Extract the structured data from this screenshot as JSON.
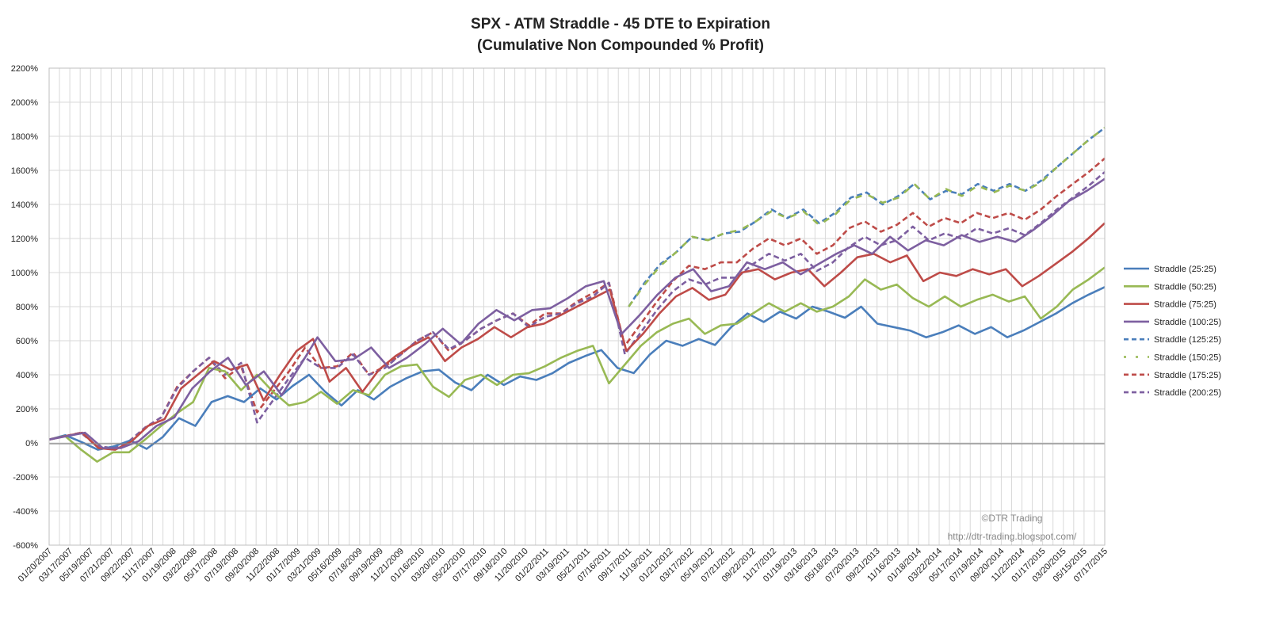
{
  "chart_data": {
    "type": "line",
    "title": "SPX - ATM Straddle - 45 DTE to Expiration",
    "subtitle": "(Cumulative Non Compounded % Profit)",
    "xlabel": "",
    "ylabel": "",
    "ylim": [
      -600,
      2200
    ],
    "y_tick_labels": [
      "-600%",
      "-400%",
      "-200%",
      "0%",
      "200%",
      "400%",
      "600%",
      "800%",
      "1000%",
      "1200%",
      "1400%",
      "1600%",
      "1800%",
      "2000%",
      "2200%"
    ],
    "x_tick_labels": [
      "01/20/2007",
      "03/17/2007",
      "05/19/2007",
      "07/21/2007",
      "09/22/2007",
      "11/17/2007",
      "01/19/2008",
      "03/22/2008",
      "05/17/2008",
      "07/19/2008",
      "09/20/2008",
      "11/22/2008",
      "01/17/2009",
      "03/21/2009",
      "05/16/2009",
      "07/18/2009",
      "09/19/2009",
      "11/21/2009",
      "01/16/2010",
      "03/20/2010",
      "05/22/2010",
      "07/17/2010",
      "09/18/2010",
      "11/20/2010",
      "01/22/2011",
      "03/19/2011",
      "05/21/2011",
      "07/16/2011",
      "09/17/2011",
      "11/19/2011",
      "01/21/2012",
      "03/17/2012",
      "05/19/2012",
      "07/21/2012",
      "09/22/2012",
      "11/17/2012",
      "01/19/2013",
      "03/16/2013",
      "05/18/2013",
      "07/20/2013",
      "09/21/2013",
      "11/16/2013",
      "01/18/2014",
      "03/22/2014",
      "05/17/2014",
      "07/19/2014",
      "09/20/2014",
      "11/22/2014",
      "01/17/2015",
      "03/20/2015",
      "05/15/2015",
      "07/17/2015"
    ],
    "grid": true,
    "legend_position": "right",
    "series": [
      {
        "name": "Straddle (25:25)",
        "color": "#4a7ebb",
        "dash": "solid",
        "values": [
          20,
          45,
          5,
          -40,
          -20,
          15,
          -35,
          35,
          145,
          100,
          240,
          275,
          240,
          320,
          255,
          335,
          400,
          300,
          220,
          310,
          255,
          330,
          380,
          420,
          430,
          355,
          310,
          400,
          340,
          390,
          370,
          410,
          470,
          510,
          545,
          440,
          410,
          520,
          600,
          570,
          610,
          575,
          680,
          760,
          710,
          770,
          730,
          800,
          770,
          735,
          800,
          700,
          680,
          660,
          620,
          650,
          690,
          640,
          680,
          620,
          660,
          710,
          760,
          820,
          870,
          915
        ]
      },
      {
        "name": "Straddle (50:25)",
        "color": "#98b954",
        "dash": "solid",
        "values": [
          20,
          40,
          -40,
          -110,
          -55,
          -55,
          20,
          100,
          175,
          240,
          440,
          420,
          310,
          400,
          300,
          220,
          240,
          300,
          230,
          310,
          280,
          400,
          450,
          460,
          330,
          270,
          370,
          400,
          340,
          400,
          410,
          450,
          500,
          540,
          570,
          350,
          460,
          570,
          650,
          700,
          730,
          640,
          690,
          700,
          760,
          820,
          770,
          820,
          770,
          800,
          860,
          960,
          900,
          930,
          850,
          800,
          860,
          800,
          840,
          870,
          830,
          860,
          730,
          800,
          900,
          960,
          1030
        ]
      },
      {
        "name": "Straddle (75:25)",
        "color": "#be4b48",
        "dash": "solid",
        "values": [
          20,
          40,
          60,
          -30,
          -40,
          10,
          100,
          140,
          320,
          400,
          480,
          430,
          460,
          250,
          400,
          540,
          610,
          360,
          440,
          300,
          430,
          510,
          570,
          620,
          480,
          560,
          610,
          680,
          620,
          680,
          700,
          750,
          800,
          850,
          900,
          540,
          640,
          760,
          860,
          910,
          840,
          870,
          1000,
          1020,
          960,
          1000,
          1020,
          920,
          1000,
          1090,
          1110,
          1060,
          1100,
          950,
          1000,
          980,
          1020,
          990,
          1020,
          920,
          980,
          1050,
          1120,
          1200,
          1290
        ]
      },
      {
        "name": "Straddle (100:25)",
        "color": "#7d5fa0",
        "dash": "solid",
        "values": [
          20,
          40,
          60,
          -30,
          -30,
          10,
          100,
          150,
          320,
          420,
          500,
          340,
          420,
          280,
          450,
          620,
          480,
          490,
          560,
          440,
          500,
          580,
          670,
          580,
          700,
          780,
          720,
          780,
          790,
          850,
          920,
          950,
          640,
          750,
          870,
          970,
          1020,
          890,
          920,
          1060,
          1020,
          1060,
          990,
          1050,
          1110,
          1160,
          1110,
          1210,
          1130,
          1190,
          1160,
          1220,
          1180,
          1210,
          1180,
          1250,
          1330,
          1420,
          1480,
          1550
        ]
      },
      {
        "name": "Straddle (125:25)",
        "color": "#4a7ebb",
        "dash": "dashed",
        "values": [
          800,
          940,
          1050,
          1120,
          1210,
          1190,
          1230,
          1240,
          1300,
          1370,
          1320,
          1370,
          1290,
          1350,
          1440,
          1470,
          1400,
          1450,
          1520,
          1430,
          1480,
          1460,
          1520,
          1480,
          1520,
          1480,
          1540,
          1620,
          1700,
          1780,
          1850
        ]
      },
      {
        "name": "Straddle (150:25)",
        "color": "#98b954",
        "dash": "dashed",
        "values": [
          800,
          930,
          1040,
          1120,
          1210,
          1190,
          1230,
          1250,
          1300,
          1360,
          1320,
          1360,
          1280,
          1340,
          1430,
          1460,
          1410,
          1440,
          1520,
          1430,
          1490,
          1450,
          1510,
          1470,
          1510,
          1480,
          1530,
          1620,
          1700,
          1780,
          1850
        ]
      },
      {
        "name": "Straddle (175:25)",
        "color": "#be4b48",
        "dash": "dashed",
        "values": [
          20,
          40,
          60,
          -20,
          -30,
          10,
          90,
          150,
          330,
          420,
          500,
          380,
          450,
          180,
          300,
          420,
          560,
          440,
          450,
          530,
          400,
          450,
          520,
          600,
          650,
          540,
          600,
          670,
          720,
          760,
          690,
          760,
          760,
          830,
          880,
          940,
          570,
          700,
          830,
          950,
          1040,
          1020,
          1060,
          1060,
          1140,
          1200,
          1160,
          1200,
          1110,
          1160,
          1260,
          1300,
          1240,
          1280,
          1350,
          1270,
          1320,
          1290,
          1350,
          1320,
          1350,
          1310,
          1370,
          1450,
          1520,
          1590,
          1670
        ]
      },
      {
        "name": "Straddle (200:25)",
        "color": "#7d5fa0",
        "dash": "dashed",
        "values": [
          20,
          40,
          60,
          -20,
          -30,
          10,
          90,
          150,
          320,
          420,
          500,
          400,
          470,
          120,
          250,
          380,
          500,
          440,
          440,
          520,
          400,
          440,
          520,
          600,
          650,
          550,
          600,
          670,
          720,
          760,
          680,
          740,
          760,
          820,
          860,
          940,
          520,
          650,
          780,
          890,
          960,
          930,
          970,
          970,
          1050,
          1110,
          1070,
          1110,
          1010,
          1060,
          1150,
          1210,
          1160,
          1190,
          1270,
          1190,
          1230,
          1200,
          1260,
          1230,
          1260,
          1220,
          1290,
          1370,
          1440,
          1510,
          1590
        ]
      }
    ],
    "annotations": [
      "©DTR Trading",
      "http://dtr-trading.blogspot.com/"
    ]
  }
}
